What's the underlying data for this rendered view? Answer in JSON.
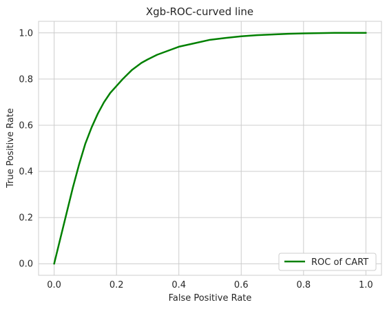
{
  "chart_data": {
    "type": "line",
    "title": "Xgb-ROC-curved line",
    "xlabel": "False Positive Rate",
    "ylabel": "True Positive Rate",
    "xlim": [
      -0.05,
      1.05
    ],
    "ylim": [
      -0.05,
      1.05
    ],
    "xticks": [
      0.0,
      0.2,
      0.4,
      0.6,
      0.8,
      1.0
    ],
    "yticks": [
      0.0,
      0.2,
      0.4,
      0.6,
      0.8,
      1.0
    ],
    "xtick_labels": [
      "0.0",
      "0.2",
      "0.4",
      "0.6",
      "0.8",
      "1.0"
    ],
    "ytick_labels": [
      "0.0",
      "0.2",
      "0.4",
      "0.6",
      "0.8",
      "1.0"
    ],
    "grid": true,
    "legend_position": "lower-right",
    "series": [
      {
        "name": "ROC of CART",
        "color": "#008000",
        "x": [
          0.0,
          0.02,
          0.04,
          0.06,
          0.08,
          0.1,
          0.12,
          0.14,
          0.16,
          0.18,
          0.2,
          0.22,
          0.25,
          0.28,
          0.3,
          0.33,
          0.36,
          0.4,
          0.45,
          0.5,
          0.55,
          0.6,
          0.65,
          0.7,
          0.75,
          0.8,
          0.85,
          0.9,
          0.95,
          1.0
        ],
        "y": [
          0.0,
          0.11,
          0.22,
          0.33,
          0.43,
          0.52,
          0.59,
          0.65,
          0.7,
          0.74,
          0.77,
          0.8,
          0.84,
          0.87,
          0.885,
          0.905,
          0.92,
          0.94,
          0.955,
          0.97,
          0.978,
          0.985,
          0.99,
          0.993,
          0.996,
          0.998,
          0.999,
          1.0,
          1.0,
          1.0
        ]
      }
    ]
  }
}
